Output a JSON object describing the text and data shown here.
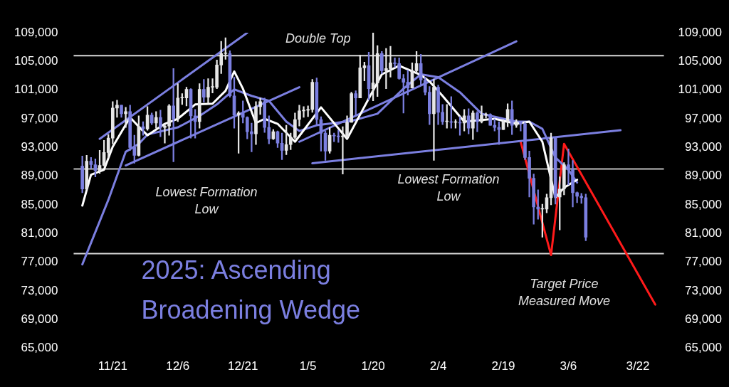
{
  "chart_data": {
    "type": "candlestick",
    "title": "2025: Ascending Broadening Wedge",
    "x": [
      "2024-11-14",
      "2024-11-15",
      "2024-11-16",
      "2024-11-17",
      "2024-11-18",
      "2024-11-19",
      "2024-11-20",
      "2024-11-21",
      "2024-11-22",
      "2024-11-23",
      "2024-11-24",
      "2024-11-25",
      "2024-11-26",
      "2024-11-27",
      "2024-11-28",
      "2024-11-29",
      "2024-11-30",
      "2024-12-01",
      "2024-12-02",
      "2024-12-03",
      "2024-12-04",
      "2024-12-05",
      "2024-12-06",
      "2024-12-07",
      "2024-12-08",
      "2024-12-09",
      "2024-12-10",
      "2024-12-11",
      "2024-12-12",
      "2024-12-13",
      "2024-12-14",
      "2024-12-15",
      "2024-12-16",
      "2024-12-17",
      "2024-12-18",
      "2024-12-19",
      "2024-12-20",
      "2024-12-21",
      "2024-12-22",
      "2024-12-23",
      "2024-12-24",
      "2024-12-25",
      "2024-12-26",
      "2024-12-27",
      "2024-12-28",
      "2024-12-29",
      "2024-12-30",
      "2024-12-31",
      "2025-01-01",
      "2025-01-02",
      "2025-01-03",
      "2025-01-04",
      "2025-01-05",
      "2025-01-06",
      "2025-01-07",
      "2025-01-08",
      "2025-01-09",
      "2025-01-10",
      "2025-01-11",
      "2025-01-12",
      "2025-01-13",
      "2025-01-14",
      "2025-01-15",
      "2025-01-16",
      "2025-01-17",
      "2025-01-18",
      "2025-01-19",
      "2025-01-20",
      "2025-01-21",
      "2025-01-22",
      "2025-01-23",
      "2025-01-24",
      "2025-01-25",
      "2025-01-26",
      "2025-01-27",
      "2025-01-28",
      "2025-01-29",
      "2025-01-30",
      "2025-01-31",
      "2025-02-01",
      "2025-02-02",
      "2025-02-03",
      "2025-02-04",
      "2025-02-05",
      "2025-02-06",
      "2025-02-07",
      "2025-02-08",
      "2025-02-09",
      "2025-02-10",
      "2025-02-11",
      "2025-02-12",
      "2025-02-13",
      "2025-02-14",
      "2025-02-15",
      "2025-02-16",
      "2025-02-17",
      "2025-02-18",
      "2025-02-19",
      "2025-02-20",
      "2025-02-21",
      "2025-02-22",
      "2025-02-23",
      "2025-02-24",
      "2025-02-25",
      "2025-02-26",
      "2025-02-27",
      "2025-02-28",
      "2025-03-01",
      "2025-03-02",
      "2025-03-03",
      "2025-03-04",
      "2025-03-05",
      "2025-03-06",
      "2025-03-07",
      "2025-03-08",
      "2025-03-09",
      "2025-03-10"
    ],
    "ohlc": [
      [
        90400,
        91800,
        86700,
        87200
      ],
      [
        87200,
        91900,
        87100,
        91100
      ],
      [
        91100,
        91600,
        90100,
        90600
      ],
      [
        90600,
        91400,
        88900,
        89800
      ],
      [
        89800,
        92600,
        89400,
        90500
      ],
      [
        90500,
        94000,
        90400,
        92300
      ],
      [
        92300,
        94800,
        91600,
        94300
      ],
      [
        94300,
        99400,
        93500,
        98500
      ],
      [
        98500,
        99600,
        97200,
        98900
      ],
      [
        98900,
        98900,
        97200,
        97700
      ],
      [
        97700,
        98600,
        95800,
        98000
      ],
      [
        98000,
        98900,
        92600,
        93000
      ],
      [
        93000,
        94700,
        90800,
        91900
      ],
      [
        91900,
        97400,
        91800,
        95900
      ],
      [
        95900,
        96600,
        94700,
        95600
      ],
      [
        95600,
        98700,
        95400,
        97500
      ],
      [
        97500,
        97800,
        96200,
        96400
      ],
      [
        96400,
        98000,
        95700,
        97200
      ],
      [
        97200,
        98200,
        94500,
        95800
      ],
      [
        95800,
        96300,
        93600,
        96000
      ],
      [
        96000,
        99000,
        94700,
        98800
      ],
      [
        98800,
        104000,
        91000,
        97000
      ],
      [
        97000,
        101900,
        96600,
        99900
      ],
      [
        99900,
        100500,
        99000,
        99900
      ],
      [
        99900,
        101400,
        98800,
        101100
      ],
      [
        101100,
        101200,
        94300,
        97400
      ],
      [
        97400,
        98300,
        94300,
        96600
      ],
      [
        96600,
        101900,
        95700,
        101100
      ],
      [
        101100,
        102500,
        99300,
        100000
      ],
      [
        100000,
        102600,
        99200,
        101400
      ],
      [
        101400,
        102600,
        100600,
        101400
      ],
      [
        101400,
        105200,
        101200,
        104500
      ],
      [
        104500,
        107800,
        103300,
        106100
      ],
      [
        106100,
        108300,
        105300,
        106100
      ],
      [
        106100,
        106500,
        100000,
        100200
      ],
      [
        100200,
        102800,
        95700,
        97500
      ],
      [
        97500,
        98000,
        92200,
        97800
      ],
      [
        97800,
        99500,
        96400,
        97200
      ],
      [
        97200,
        97300,
        94200,
        95200
      ],
      [
        95200,
        96400,
        92400,
        94900
      ],
      [
        94900,
        99400,
        93400,
        98700
      ],
      [
        98700,
        99900,
        97600,
        99400
      ],
      [
        99400,
        99900,
        95100,
        95800
      ],
      [
        95800,
        97400,
        93500,
        94200
      ],
      [
        94200,
        95500,
        94100,
        95200
      ],
      [
        95200,
        95300,
        93000,
        93600
      ],
      [
        93600,
        95000,
        91300,
        92600
      ],
      [
        92600,
        96100,
        92000,
        93400
      ],
      [
        93400,
        95000,
        92700,
        94400
      ],
      [
        94400,
        97800,
        94200,
        96900
      ],
      [
        96900,
        98900,
        96000,
        98100
      ],
      [
        98100,
        98700,
        97200,
        98200
      ],
      [
        98200,
        98800,
        97300,
        98300
      ],
      [
        98300,
        102500,
        97900,
        102100
      ],
      [
        102100,
        102700,
        96100,
        96900
      ],
      [
        96900,
        97300,
        92500,
        95000
      ],
      [
        95000,
        95300,
        91200,
        92500
      ],
      [
        92500,
        95800,
        92200,
        94700
      ],
      [
        94700,
        95000,
        93800,
        94600
      ],
      [
        94600,
        95400,
        93700,
        94500
      ],
      [
        94500,
        95900,
        89300,
        94500
      ],
      [
        94500,
        97400,
        94300,
        96500
      ],
      [
        96500,
        100700,
        96500,
        100500
      ],
      [
        100500,
        100900,
        97300,
        99900
      ],
      [
        99900,
        105900,
        99900,
        104100
      ],
      [
        104100,
        104900,
        102300,
        104400
      ],
      [
        104400,
        106300,
        99600,
        101200
      ],
      [
        101200,
        109100,
        99500,
        102000
      ],
      [
        102000,
        107200,
        100100,
        106100
      ],
      [
        106100,
        106400,
        103300,
        103700
      ],
      [
        103700,
        106800,
        101200,
        104000
      ],
      [
        104000,
        107100,
        102800,
        104800
      ],
      [
        104800,
        105500,
        104200,
        104700
      ],
      [
        104700,
        105500,
        102500,
        102600
      ],
      [
        102600,
        103200,
        97800,
        102100
      ],
      [
        102100,
        103800,
        100300,
        101300
      ],
      [
        101300,
        104800,
        101300,
        103700
      ],
      [
        103700,
        106400,
        103300,
        104700
      ],
      [
        104700,
        106000,
        101600,
        102400
      ],
      [
        102400,
        102800,
        100300,
        100700
      ],
      [
        100700,
        101500,
        96200,
        97700
      ],
      [
        97700,
        102500,
        91200,
        101400
      ],
      [
        101400,
        101700,
        96200,
        97900
      ],
      [
        97900,
        99000,
        96200,
        96600
      ],
      [
        96600,
        99000,
        95700,
        96600
      ],
      [
        96600,
        100100,
        95700,
        96500
      ],
      [
        96500,
        96900,
        95700,
        96500
      ],
      [
        96500,
        97300,
        94700,
        96400
      ],
      [
        96400,
        98300,
        95300,
        97400
      ],
      [
        97400,
        98400,
        94900,
        95700
      ],
      [
        95700,
        98100,
        94100,
        97800
      ],
      [
        97800,
        98000,
        95200,
        96600
      ],
      [
        96600,
        98800,
        96400,
        97500
      ],
      [
        97500,
        97800,
        97100,
        97600
      ],
      [
        97600,
        97700,
        96100,
        96100
      ],
      [
        96100,
        97000,
        95300,
        95800
      ],
      [
        95800,
        96600,
        93400,
        95500
      ],
      [
        95500,
        96900,
        95500,
        96600
      ],
      [
        96600,
        99100,
        95900,
        98300
      ],
      [
        98300,
        99500,
        94800,
        96100
      ],
      [
        96100,
        96900,
        95800,
        96600
      ],
      [
        96600,
        96600,
        95300,
        96300
      ],
      [
        96300,
        96500,
        91300,
        91600
      ],
      [
        91600,
        92500,
        86100,
        88700
      ],
      [
        88700,
        89300,
        82300,
        84700
      ],
      [
        84700,
        87100,
        83000,
        84400
      ],
      [
        84400,
        85100,
        80500,
        84400
      ],
      [
        84400,
        86500,
        83900,
        86000
      ],
      [
        86000,
        95000,
        85000,
        94300
      ],
      [
        94300,
        94400,
        85100,
        86100
      ],
      [
        86100,
        88900,
        81500,
        87200
      ],
      [
        87200,
        90900,
        86400,
        90600
      ],
      [
        90600,
        92800,
        87800,
        89900
      ],
      [
        89900,
        91200,
        84700,
        86700
      ],
      [
        86700,
        86800,
        85300,
        86200
      ],
      [
        86200,
        86600,
        85200,
        86000
      ],
      [
        86000,
        86500,
        80000,
        80500
      ]
    ],
    "colors": [
      "#7b7fe0",
      "#e6e6e6",
      "#7b7fe0",
      "#7b7fe0",
      "#e6e6e6",
      "#e6e6e6",
      "#e6e6e6",
      "#e6e6e6",
      "#e6e6e6",
      "#7b7fe0",
      "#e6e6e6",
      "#7b7fe0",
      "#7b7fe0",
      "#e6e6e6",
      "#7b7fe0",
      "#e6e6e6",
      "#7b7fe0",
      "#e6e6e6",
      "#7b7fe0",
      "#e6e6e6",
      "#e6e6e6",
      "#7b7fe0",
      "#e6e6e6",
      "#e6e6e6",
      "#e6e6e6",
      "#7b7fe0",
      "#7b7fe0",
      "#e6e6e6",
      "#7b7fe0",
      "#e6e6e6",
      "#e6e6e6",
      "#e6e6e6",
      "#e6e6e6",
      "#e6e6e6",
      "#7b7fe0",
      "#7b7fe0",
      "#e6e6e6",
      "#7b7fe0",
      "#7b7fe0",
      "#7b7fe0",
      "#e6e6e6",
      "#e6e6e6",
      "#7b7fe0",
      "#7b7fe0",
      "#e6e6e6",
      "#7b7fe0",
      "#7b7fe0",
      "#e6e6e6",
      "#e6e6e6",
      "#e6e6e6",
      "#e6e6e6",
      "#e6e6e6",
      "#e6e6e6",
      "#e6e6e6",
      "#7b7fe0",
      "#7b7fe0",
      "#7b7fe0",
      "#e6e6e6",
      "#7b7fe0",
      "#7b7fe0",
      "#e6e6e6",
      "#e6e6e6",
      "#e6e6e6",
      "#7b7fe0",
      "#e6e6e6",
      "#e6e6e6",
      "#7b7fe0",
      "#e6e6e6",
      "#e6e6e6",
      "#7b7fe0",
      "#e6e6e6",
      "#e6e6e6",
      "#7b7fe0",
      "#7b7fe0",
      "#7b7fe0",
      "#7b7fe0",
      "#e6e6e6",
      "#e6e6e6",
      "#7b7fe0",
      "#7b7fe0",
      "#7b7fe0",
      "#e6e6e6",
      "#7b7fe0",
      "#7b7fe0",
      "#e6e6e6",
      "#7b7fe0",
      "#e6e6e6",
      "#7b7fe0",
      "#e6e6e6",
      "#7b7fe0",
      "#e6e6e6",
      "#7b7fe0",
      "#e6e6e6",
      "#e6e6e6",
      "#7b7fe0",
      "#7b7fe0",
      "#7b7fe0",
      "#e6e6e6",
      "#e6e6e6",
      "#7b7fe0",
      "#e6e6e6",
      "#7b7fe0",
      "#7b7fe0",
      "#7b7fe0",
      "#7b7fe0",
      "#7b7fe0",
      "#e6e6e6",
      "#e6e6e6",
      "#e6e6e6",
      "#7b7fe0",
      "#e6e6e6",
      "#e6e6e6",
      "#7b7fe0",
      "#7b7fe0",
      "#7b7fe0",
      "#7b7fe0",
      "#7b7fe0"
    ],
    "series": [
      {
        "type": "line",
        "color": "#ffffff",
        "x": [
          "2024-11-14",
          "2024-11-16",
          "2024-11-19",
          "2024-11-21",
          "2024-11-25",
          "2024-11-27",
          "2024-11-29",
          "2024-12-03",
          "2024-12-06",
          "2024-12-10",
          "2024-12-14",
          "2024-12-17",
          "2024-12-19",
          "2024-12-21",
          "2024-12-24",
          "2024-12-26",
          "2024-12-29",
          "2025-01-02",
          "2025-01-08",
          "2025-01-14",
          "2025-01-22",
          "2025-01-26",
          "2025-01-31",
          "2025-02-02",
          "2025-02-05",
          "2025-02-10",
          "2025-02-17",
          "2025-02-22",
          "2025-02-25",
          "2025-02-28",
          "2025-03-03",
          "2025-03-05",
          "2025-03-08"
        ],
        "values": [
          84900,
          89200,
          89900,
          93100,
          97200,
          95900,
          94700,
          96300,
          97000,
          99000,
          99100,
          100900,
          103600,
          101200,
          96400,
          97000,
          96300,
          93800,
          98600,
          94200,
          103200,
          104400,
          103100,
          102200,
          100200,
          96600,
          97000,
          96300,
          96600,
          93800,
          86000,
          87400,
          88500
        ]
      },
      {
        "type": "line",
        "color": "#7b7fe0",
        "x": [
          "2024-11-14",
          "2024-11-20",
          "2024-11-24",
          "2024-11-27",
          "2024-11-29",
          "2024-12-06",
          "2024-12-11",
          "2024-12-15",
          "2024-12-19",
          "2024-12-23",
          "2024-12-27",
          "2024-12-31",
          "2025-01-03",
          "2025-01-07",
          "2025-01-15",
          "2025-01-21",
          "2025-01-27",
          "2025-01-31",
          "2025-02-04",
          "2025-02-09",
          "2025-02-14",
          "2025-02-22",
          "2025-02-25",
          "2025-02-28",
          "2025-03-03",
          "2025-03-06",
          "2025-03-08"
        ],
        "values": [
          76700,
          85700,
          92400,
          93500,
          94800,
          95800,
          97400,
          99000,
          101100,
          100200,
          99500,
          96600,
          95300,
          96100,
          96700,
          97700,
          101200,
          103200,
          102800,
          100700,
          97700,
          96600,
          96600,
          95600,
          91600,
          89900,
          88100
        ]
      },
      {
        "type": "line",
        "color": "#7b7fe0",
        "x": [
          "2024-11-18",
          "2024-12-22"
        ],
        "values": [
          94200,
          109000
        ]
      },
      {
        "type": "line",
        "color": "#7b7fe0",
        "x": [
          "2024-11-24",
          "2025-01-03"
        ],
        "values": [
          90500,
          101400
        ]
      },
      {
        "type": "line",
        "color": "#7b7fe0",
        "x": [
          "2025-01-03",
          "2025-02-22"
        ],
        "values": [
          93800,
          107800
        ]
      },
      {
        "type": "line",
        "color": "#7b7fe0",
        "x": [
          "2025-01-06",
          "2025-03-18"
        ],
        "values": [
          90800,
          95400
        ]
      },
      {
        "type": "line",
        "color": "#ff1a1a",
        "x": [
          "2025-02-23",
          "2025-03-02",
          "2025-03-05",
          "2025-03-26"
        ],
        "values": [
          93800,
          78000,
          93500,
          71100
        ]
      }
    ],
    "xlim": [
      "2024-11-12",
      "2025-03-28"
    ],
    "xticks": [
      {
        "value": "2024-11-21",
        "label": "11/21"
      },
      {
        "value": "2024-12-06",
        "label": "12/6"
      },
      {
        "value": "2024-12-21",
        "label": "12/21"
      },
      {
        "value": "2025-01-05",
        "label": "1/5"
      },
      {
        "value": "2025-01-20",
        "label": "1/20"
      },
      {
        "value": "2025-02-04",
        "label": "2/4"
      },
      {
        "value": "2025-02-19",
        "label": "2/19"
      },
      {
        "value": "2025-03-06",
        "label": "3/6"
      },
      {
        "value": "2025-03-22",
        "label": "3/22"
      }
    ],
    "ylim": [
      65000,
      109000
    ],
    "yticks": [
      {
        "value": 65000,
        "label": "65,000"
      },
      {
        "value": 69000,
        "label": "69,000"
      },
      {
        "value": 73000,
        "label": "73,000"
      },
      {
        "value": 77000,
        "label": "77,000"
      },
      {
        "value": 81000,
        "label": "81,000"
      },
      {
        "value": 85000,
        "label": "85,000"
      },
      {
        "value": 89000,
        "label": "89,000"
      },
      {
        "value": 93000,
        "label": "93,000"
      },
      {
        "value": 97000,
        "label": "97,000"
      },
      {
        "value": 101000,
        "label": "101,000"
      },
      {
        "value": 105000,
        "label": "105,000"
      },
      {
        "value": 109000,
        "label": "109,000"
      }
    ],
    "y2lim": [
      65000,
      109000
    ],
    "y2ticks": [
      {
        "value": 65000,
        "label": "65,000"
      },
      {
        "value": 69000,
        "label": "69,000"
      },
      {
        "value": 73000,
        "label": "73,000"
      },
      {
        "value": 77000,
        "label": "77,000"
      },
      {
        "value": 81000,
        "label": "81,000"
      },
      {
        "value": 85000,
        "label": "85,000"
      },
      {
        "value": 89000,
        "label": "89,000"
      },
      {
        "value": 93000,
        "label": "93,000"
      },
      {
        "value": 97000,
        "label": "97,000"
      },
      {
        "value": 101000,
        "label": "101,000"
      },
      {
        "value": 105000,
        "label": "105,000"
      },
      {
        "value": 109000,
        "label": "109,000"
      }
    ],
    "ref_lines": [
      {
        "axis": "y",
        "value": 105800,
        "color": "#d9d9d9"
      },
      {
        "axis": "y",
        "value": 90000,
        "color": "#bfbfbf"
      },
      {
        "axis": "y",
        "value": 78200,
        "color": "#d9d9d9"
      }
    ],
    "annotations": [
      "Double Top",
      "Lowest Formation Low",
      "Lowest Formation Low",
      "Target Price Measured Move"
    ],
    "grid": false,
    "legend": false
  }
}
